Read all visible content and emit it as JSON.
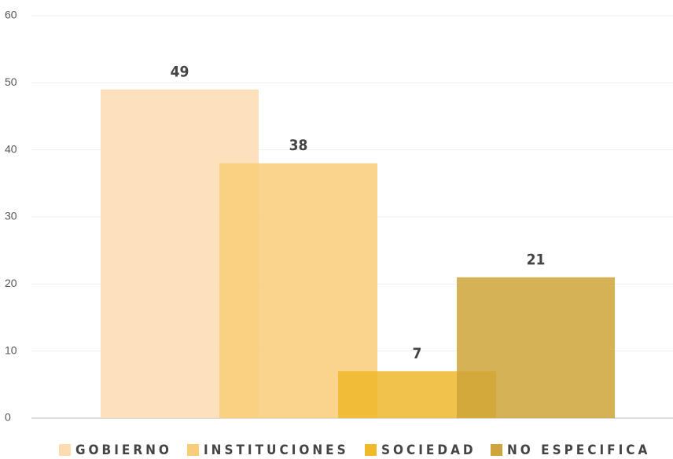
{
  "chart_data": {
    "type": "bar",
    "series": [
      {
        "name": "GOBIERNO",
        "color": "#fcdcb0",
        "values": [
          49
        ]
      },
      {
        "name": "INSTITUCIONES",
        "color": "#f9cd78",
        "values": [
          38
        ]
      },
      {
        "name": "SOCIEDAD",
        "color": "#efb92a",
        "values": [
          7
        ]
      },
      {
        "name": "NO ESPECIFICA",
        "color": "#cfa53a",
        "values": [
          21
        ]
      }
    ],
    "ylim": [
      0,
      60
    ],
    "yticks": [
      0,
      10,
      20,
      30,
      40,
      50,
      60
    ],
    "grid": true,
    "legend": "bottom"
  }
}
